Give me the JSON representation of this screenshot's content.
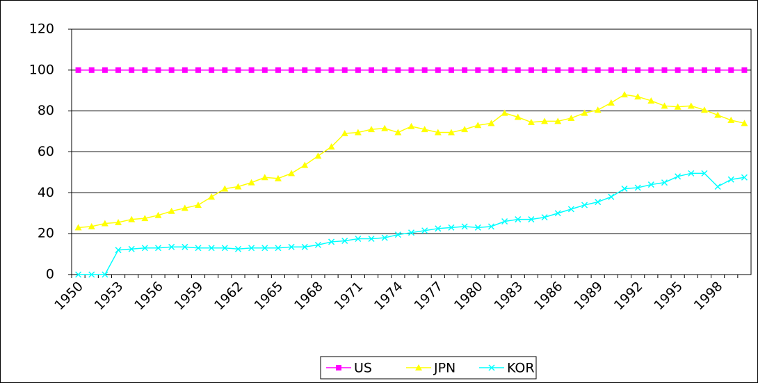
{
  "chart_data": {
    "type": "line",
    "categories": [
      "1950",
      null,
      null,
      "1953",
      null,
      null,
      "1956",
      null,
      null,
      "1959",
      null,
      null,
      "1962",
      null,
      null,
      "1965",
      null,
      null,
      "1968",
      null,
      null,
      "1971",
      null,
      null,
      "1974",
      null,
      null,
      "1977",
      null,
      null,
      "1980",
      null,
      null,
      "1983",
      null,
      null,
      "1986",
      null,
      null,
      "1989",
      null,
      null,
      "1992",
      null,
      null,
      "1995",
      null,
      null,
      "1998",
      null,
      null
    ],
    "series": [
      {
        "name": "US",
        "color": "#ff00ff",
        "marker": "square",
        "values": [
          100,
          100,
          100,
          100,
          100,
          100,
          100,
          100,
          100,
          100,
          100,
          100,
          100,
          100,
          100,
          100,
          100,
          100,
          100,
          100,
          100,
          100,
          100,
          100,
          100,
          100,
          100,
          100,
          100,
          100,
          100,
          100,
          100,
          100,
          100,
          100,
          100,
          100,
          100,
          100,
          100,
          100,
          100,
          100,
          100,
          100,
          100,
          100,
          100,
          100,
          100
        ]
      },
      {
        "name": "JPN",
        "color": "#ffff00",
        "marker": "triangle",
        "values": [
          23,
          23.5,
          25,
          25.5,
          27,
          27.5,
          29,
          31,
          32.5,
          34,
          38,
          42,
          43,
          45,
          47.5,
          47,
          49.5,
          53.5,
          58,
          62.5,
          69,
          69.5,
          71,
          71.5,
          69.5,
          72.5,
          71,
          69.5,
          69.5,
          71,
          73,
          74,
          79,
          77,
          74.5,
          75,
          75,
          76.5,
          79,
          80.5,
          84,
          88,
          87,
          85,
          82.5,
          82,
          82.5,
          80.5,
          78,
          75.5,
          74
        ]
      },
      {
        "name": "KOR",
        "color": "#00ffff",
        "marker": "x",
        "values": [
          0,
          0,
          0,
          12,
          12.5,
          13,
          13,
          13.5,
          13.5,
          13,
          13,
          13,
          12.5,
          13,
          13,
          13,
          13.5,
          13.5,
          14.5,
          16,
          16.5,
          17.5,
          17.5,
          18,
          19.5,
          20.5,
          21.5,
          22.5,
          23,
          23.5,
          23,
          23.5,
          26,
          27,
          27,
          28,
          30,
          32,
          34,
          35.5,
          38,
          42,
          42.5,
          44,
          45,
          48,
          49.5,
          49.5,
          43,
          46.5,
          47.5
        ]
      }
    ],
    "ylim": [
      0,
      120
    ],
    "yticks": [
      0,
      20,
      40,
      60,
      80,
      100,
      120
    ],
    "grid": true,
    "legend": "bottom"
  }
}
